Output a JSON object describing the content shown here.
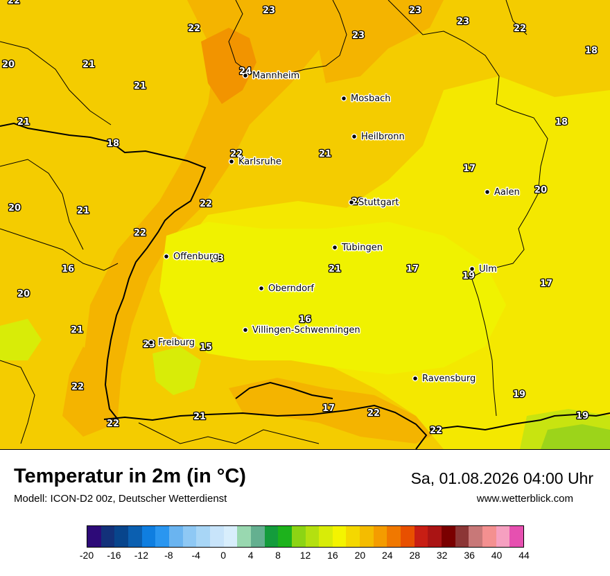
{
  "title": "Temperatur in 2m (in °C)",
  "subtitle": "Modell: ICON-D2 00z, Deutscher Wetterdienst",
  "datetime": "Sa, 01.08.2026 04:00 Uhr",
  "website": "www.wetterblick.com",
  "legend": {
    "ticks": [
      "-20",
      "-16",
      "-12",
      "-8",
      "-4",
      "0",
      "4",
      "8",
      "12",
      "16",
      "20",
      "24",
      "28",
      "32",
      "36",
      "40",
      "44"
    ],
    "colors": [
      "#2d0a78",
      "#13317a",
      "#08458c",
      "#0b5fb0",
      "#0f7ee0",
      "#2a96f0",
      "#6ab4f0",
      "#8ec8f4",
      "#a8d6f6",
      "#c8e4fa",
      "#d8eefc",
      "#99d8b0",
      "#64b090",
      "#149c3c",
      "#1db21c",
      "#8cd414",
      "#b4e010",
      "#d8ec08",
      "#f4f400",
      "#f4d800",
      "#f4bc00",
      "#f49c00",
      "#f07800",
      "#e85000",
      "#c81e14",
      "#aa1414",
      "#7a0000",
      "#8c3636",
      "#c87878",
      "#f49090",
      "#f6a0c0",
      "#e650b0"
    ]
  },
  "cities": [
    {
      "name": "Mannheim"
    },
    {
      "name": "Mosbach"
    },
    {
      "name": "Heilbronn"
    },
    {
      "name": "Karlsruhe"
    },
    {
      "name": "Stuttgart"
    },
    {
      "name": "Aalen"
    },
    {
      "name": "Tübingen"
    },
    {
      "name": "Offenburg"
    },
    {
      "name": "Ulm"
    },
    {
      "name": "Oberndorf"
    },
    {
      "name": "Villingen-Schwenningen"
    },
    {
      "name": "Freiburg"
    },
    {
      "name": "Ravensburg"
    }
  ],
  "temperatures": [
    "23",
    "23",
    "23",
    "22",
    "22",
    "20",
    "21",
    "24",
    "21",
    "18",
    "23",
    "21",
    "18",
    "18",
    "22",
    "21",
    "17",
    "20",
    "20",
    "21",
    "22",
    "22",
    "22",
    "23",
    "16",
    "20",
    "21",
    "17",
    "19",
    "17",
    "16",
    "21",
    "23",
    "15",
    "22",
    "22",
    "21",
    "17",
    "22",
    "22",
    "19",
    "19",
    "22"
  ]
}
